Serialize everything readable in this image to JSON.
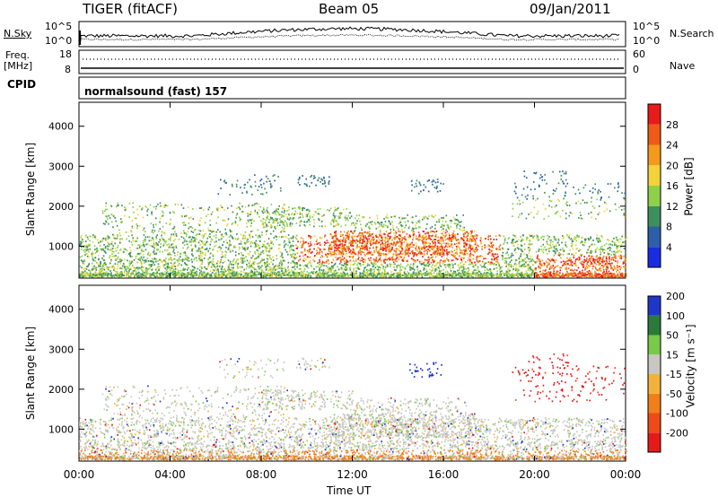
{
  "header": {
    "title": "TIGER (fitACF)",
    "beam": "Beam 05",
    "date": "09/Jan/2011"
  },
  "panels": {
    "nsky": {
      "label": "N.Sky",
      "ytop": "10^5",
      "ybot": "10^0"
    },
    "nsearch": {
      "label": "N.Search",
      "ytop": "10^5",
      "ybot": "10^0"
    },
    "freq": {
      "label_line1": "Freq.",
      "label_line2": "[MHz]",
      "ytop": "18",
      "ybot": "8"
    },
    "nave": {
      "label": "Nave",
      "ytop": "60",
      "ybot": "0"
    },
    "cpid": {
      "label": "CPID",
      "value": "normalsound (fast) 157"
    }
  },
  "chart_data": [
    {
      "type": "heatmap",
      "name": "power",
      "ylabel": "Slant Range [km]",
      "xlabel": "Time UT",
      "xticks": [
        "00:00",
        "04:00",
        "08:00",
        "12:00",
        "16:00",
        "20:00",
        "00:00"
      ],
      "yticks": [
        "1000",
        "2000",
        "3000",
        "4000"
      ],
      "ylim": [
        200,
        4600
      ],
      "xlim_hours": [
        0,
        24
      ],
      "colorbar": {
        "label": "Power [dB]",
        "ticks": [
          "4",
          "8",
          "12",
          "16",
          "20",
          "24",
          "28"
        ],
        "range": [
          0,
          32
        ]
      }
    },
    {
      "type": "heatmap",
      "name": "velocity",
      "ylabel": "Slant Range [km]",
      "xlabel": "Time UT",
      "xticks": [
        "00:00",
        "04:00",
        "08:00",
        "12:00",
        "16:00",
        "20:00",
        "00:00"
      ],
      "yticks": [
        "1000",
        "2000",
        "3000",
        "4000"
      ],
      "ylim": [
        200,
        4600
      ],
      "xlim_hours": [
        0,
        24
      ],
      "colorbar": {
        "label": "Velocity [m s⁻¹]",
        "ticks": [
          "200",
          "100",
          "50",
          "15",
          "-15",
          "-50",
          "-100",
          "-200"
        ]
      }
    }
  ],
  "colors": {
    "power_scale": [
      "#1a2be0",
      "#2c5fa8",
      "#3e8f5e",
      "#8fd04a",
      "#f3d23a",
      "#f39a1c",
      "#ef5a16",
      "#e81a1a"
    ],
    "velocity_scale": [
      "#1f37c8",
      "#2a7a3a",
      "#79c94a",
      "#c8c8c0",
      "#f2b23a",
      "#f07f1a",
      "#ee4a18",
      "#e41a1a"
    ]
  }
}
